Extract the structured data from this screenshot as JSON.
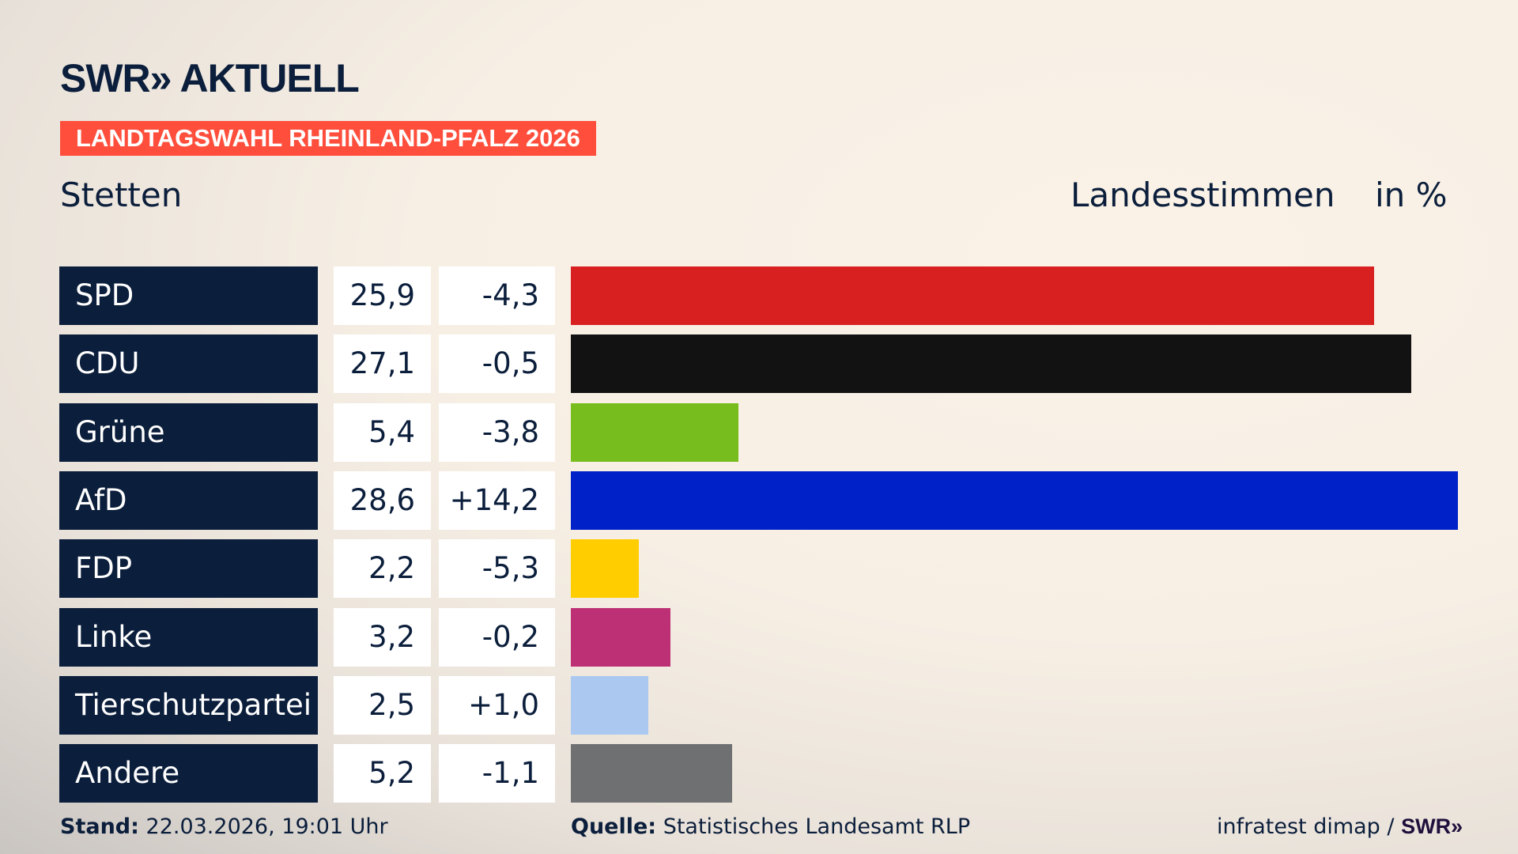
{
  "header": {
    "logo": "SWR» AKTUELL",
    "badge": "LANDTAGSWAHL RHEINLAND-PFALZ 2026",
    "location": "Stetten",
    "measure": "Landesstimmen",
    "unit": "in %"
  },
  "chart_data": {
    "type": "bar",
    "orientation": "horizontal",
    "categories": [
      "SPD",
      "CDU",
      "Grüne",
      "AfD",
      "FDP",
      "Linke",
      "Tierschutzpartei",
      "Andere"
    ],
    "values": [
      "25,9",
      "27,1",
      "5,4",
      "28,6",
      "2,2",
      "3,2",
      "2,5",
      "5,2"
    ],
    "numeric_values": [
      25.9,
      27.1,
      5.4,
      28.6,
      2.2,
      3.2,
      2.5,
      5.2
    ],
    "changes": [
      "-4,3",
      "-0,5",
      "-3,8",
      "+14,2",
      "-5,3",
      "-0,2",
      "+1,0",
      "-1,1"
    ],
    "colors": [
      "#d82021",
      "#121212",
      "#78bd1e",
      "#0021c8",
      "#ffcd00",
      "#bd3075",
      "#abc8f0",
      "#6f7072"
    ],
    "grid": false
  },
  "footer": {
    "stand_label": "Stand:",
    "stand_value": "22.03.2026, 19:01 Uhr",
    "source_label": "Quelle:",
    "source_value": "Statistisches Landesamt RLP",
    "credit": "infratest dimap /",
    "credit_logo": "SWR»"
  }
}
